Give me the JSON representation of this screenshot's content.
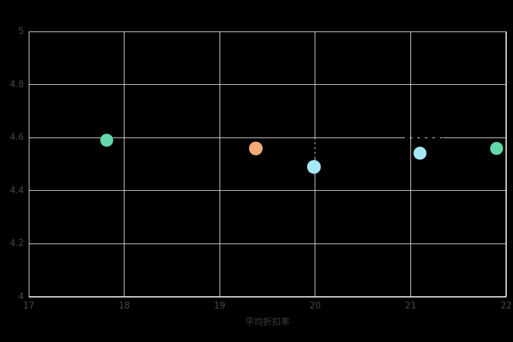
{
  "colors": {
    "background": "#000000",
    "grid": "#d4d4d4",
    "tick_text": "#474747",
    "axis_title_text": "#3f3f3f"
  },
  "chart_data": {
    "type": "scatter",
    "title": "",
    "xlabel": "平均折扣率",
    "ylabel": "",
    "xlim": [
      17,
      22
    ],
    "ylim": [
      4,
      5
    ],
    "x_ticks": [
      17,
      18,
      19,
      20,
      21,
      22
    ],
    "x_tick_labels": [
      "17",
      "18",
      "19",
      "20",
      "21",
      "22"
    ],
    "y_ticks": [
      4,
      4.2,
      4.4,
      4.6,
      4.8,
      5
    ],
    "y_tick_labels": [
      "4",
      "4.2",
      "4.4",
      "4.6",
      "4.8",
      "5"
    ],
    "grid": true,
    "legend_position": "none",
    "points": [
      {
        "x": 17.82,
        "y": 4.59,
        "color": "#63d8ab",
        "size": 19
      },
      {
        "x": 19.38,
        "y": 4.56,
        "color": "#f2aa79",
        "size": 20
      },
      {
        "x": 19.99,
        "y": 4.49,
        "color": "#a6e8f8",
        "size": 20
      },
      {
        "x": 21.1,
        "y": 4.54,
        "color": "#a6e8f8",
        "size": 19
      },
      {
        "x": 21.9,
        "y": 4.56,
        "color": "#63d8ab",
        "size": 19
      }
    ]
  }
}
